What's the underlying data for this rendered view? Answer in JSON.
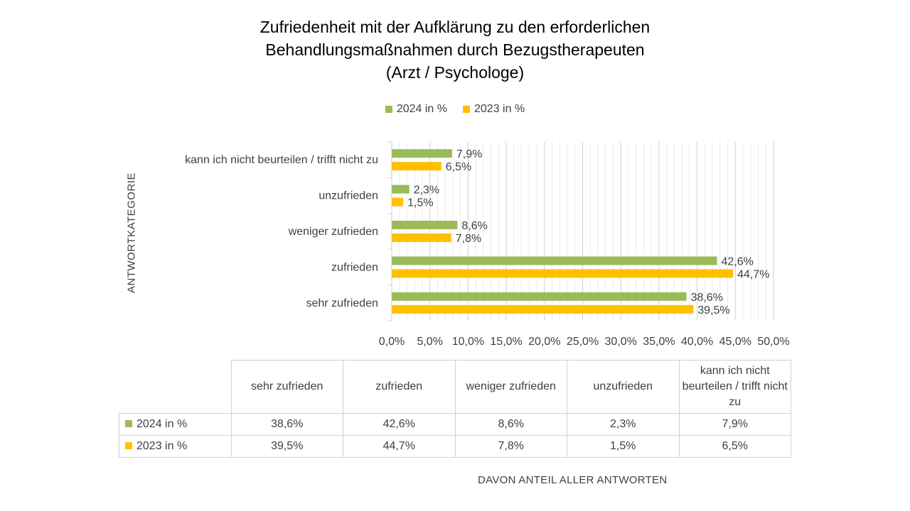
{
  "title": {
    "line1": "Zufriedenheit mit der Aufklärung zu den erforderlichen",
    "line2": "Behandlungsmaßnahmen durch Bezugstherapeuten",
    "line3": "(Arzt / Psychologe)"
  },
  "legend": {
    "series_2024": "2024 in %",
    "series_2023": "2023 in %"
  },
  "ylabel": "ANTWORTKATEGORIE",
  "xlabel": "DAVON ANTEIL ALLER ANTWORTEN",
  "colors": {
    "series_2024": "#9BBB59",
    "series_2023": "#FFC000",
    "grid": "#d9d9d9"
  },
  "chart_data": {
    "type": "bar",
    "orientation": "horizontal",
    "categories": [
      "kann ich nicht beurteilen / trifft nicht zu",
      "unzufrieden",
      "weniger zufrieden",
      "zufrieden",
      "sehr zufrieden"
    ],
    "series": [
      {
        "name": "2024 in %",
        "values": [
          7.9,
          2.3,
          8.6,
          42.6,
          38.6
        ],
        "labels": [
          "7,9%",
          "2,3%",
          "8,6%",
          "42,6%",
          "38,6%"
        ]
      },
      {
        "name": "2023 in %",
        "values": [
          6.5,
          1.5,
          7.8,
          44.7,
          39.5
        ],
        "labels": [
          "6,5%",
          "1,5%",
          "7,8%",
          "44,7%",
          "39,5%"
        ]
      }
    ],
    "xlim": [
      0,
      50
    ],
    "x_ticks": [
      "0,0%",
      "5,0%",
      "10,0%",
      "15,0%",
      "20,0%",
      "25,0%",
      "30,0%",
      "35,0%",
      "40,0%",
      "45,0%",
      "50,0%"
    ],
    "grid": true,
    "legend_position": "top"
  },
  "table": {
    "headers": [
      "sehr zufrieden",
      "zufrieden",
      "weniger zufrieden",
      "unzufrieden",
      "kann ich nicht beurteilen / trifft nicht zu"
    ],
    "rows": [
      {
        "label": "2024 in %",
        "values": [
          "38,6%",
          "42,6%",
          "8,6%",
          "2,3%",
          "7,9%"
        ]
      },
      {
        "label": "2023 in %",
        "values": [
          "39,5%",
          "44,7%",
          "7,8%",
          "1,5%",
          "6,5%"
        ]
      }
    ]
  }
}
